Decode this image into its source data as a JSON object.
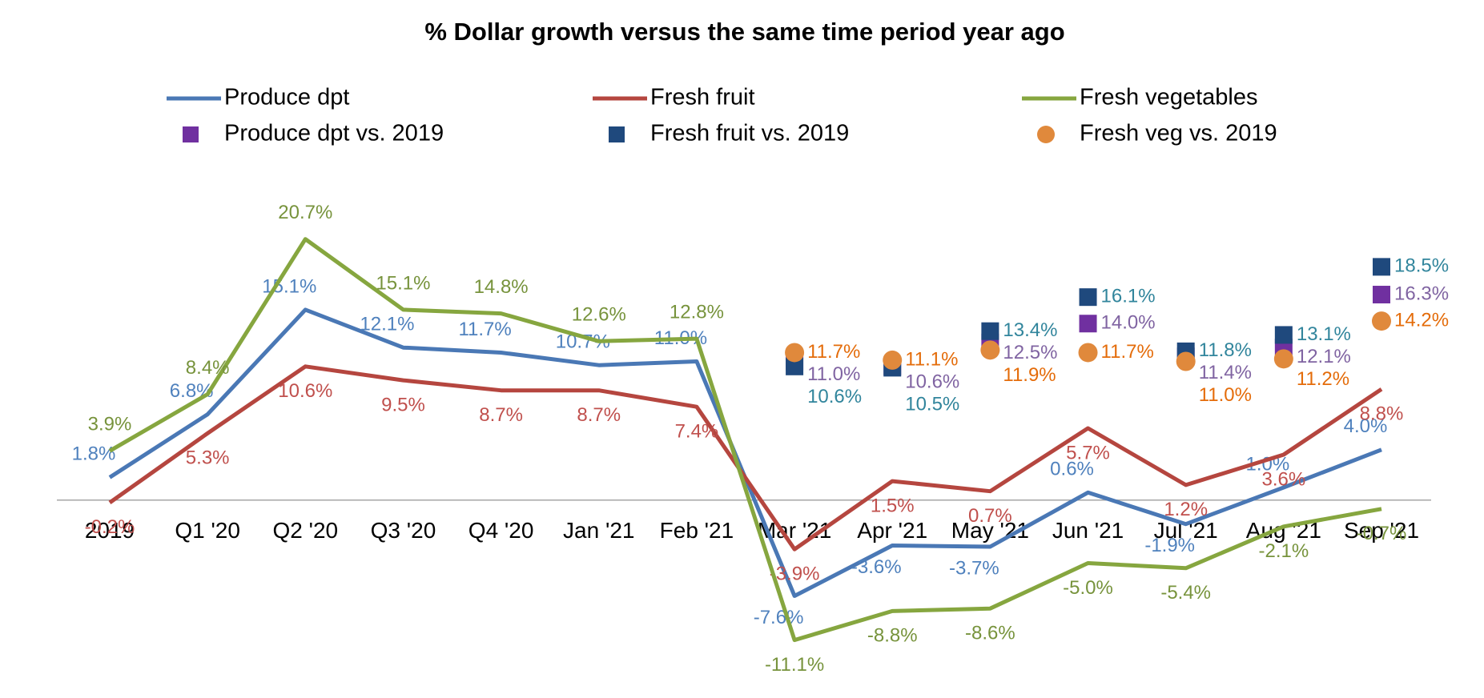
{
  "chart_data": {
    "type": "line",
    "title": "% Dollar growth versus the same time period year ago",
    "categories": [
      "2019",
      "Q1 '20",
      "Q2 '20",
      "Q3 '20",
      "Q4 '20",
      "Jan '21",
      "Feb '21",
      "Mar '21",
      "Apr '21",
      "May '21",
      "Jun '21",
      "Jul '21",
      "Aug '21",
      "Sep '21"
    ],
    "ylim": [
      -15,
      25
    ],
    "series": [
      {
        "name": "Produce dpt",
        "type": "line",
        "color": "#4a78b5",
        "label_color": "#4f81bd",
        "values": [
          1.8,
          6.8,
          15.1,
          12.1,
          11.7,
          10.7,
          11.0,
          -7.6,
          -3.6,
          -3.7,
          0.6,
          -1.9,
          1.0,
          4.0
        ],
        "value_labels": [
          "1.8%",
          "6.8%",
          "15.1%",
          "12.1%",
          "11.7%",
          "10.7%",
          "11.0%",
          "-7.6%",
          "-3.6%",
          "-3.7%",
          "0.6%",
          "-1.9%",
          "1.0%",
          "4.0%"
        ]
      },
      {
        "name": "Fresh fruit",
        "type": "line",
        "color": "#b5463f",
        "label_color": "#c0504d",
        "values": [
          -0.2,
          5.3,
          10.6,
          9.5,
          8.7,
          8.7,
          7.4,
          -3.9,
          1.5,
          0.7,
          5.7,
          1.2,
          3.6,
          8.8
        ],
        "value_labels": [
          "-0.2%",
          "5.3%",
          "10.6%",
          "9.5%",
          "8.7%",
          "8.7%",
          "7.4%",
          "-3.9%",
          "1.5%",
          "0.7%",
          "5.7%",
          "1.2%",
          "3.6%",
          "8.8%"
        ]
      },
      {
        "name": "Fresh vegetables",
        "type": "line",
        "color": "#86a63f",
        "label_color": "#77933c",
        "values": [
          3.9,
          8.4,
          20.7,
          15.1,
          14.8,
          12.6,
          12.8,
          -11.1,
          -8.8,
          -8.6,
          -5.0,
          -5.4,
          -2.1,
          -0.7
        ],
        "value_labels": [
          "3.9%",
          "8.4%",
          "20.7%",
          "15.1%",
          "14.8%",
          "12.6%",
          "12.8%",
          "-11.1%",
          "-8.8%",
          "-8.6%",
          "-5.0%",
          "-5.4%",
          "-2.1%",
          "-0.7%"
        ]
      },
      {
        "name": "Produce dpt vs. 2019",
        "type": "square",
        "color": "#7030a0",
        "label_color": "#8064a2",
        "values": [
          null,
          null,
          null,
          null,
          null,
          null,
          null,
          11.0,
          10.6,
          12.5,
          14.0,
          11.4,
          12.1,
          16.3
        ],
        "value_labels": [
          null,
          null,
          null,
          null,
          null,
          null,
          null,
          "11.0%",
          "10.6%",
          "12.5%",
          "14.0%",
          "11.4%",
          "12.1%",
          "16.3%"
        ]
      },
      {
        "name": "Fresh fruit vs. 2019",
        "type": "square",
        "color": "#1f497d",
        "label_color": "#31859c",
        "values": [
          null,
          null,
          null,
          null,
          null,
          null,
          null,
          10.6,
          10.5,
          13.4,
          16.1,
          11.8,
          13.1,
          18.5
        ],
        "value_labels": [
          null,
          null,
          null,
          null,
          null,
          null,
          null,
          "10.6%",
          "10.5%",
          "13.4%",
          "16.1%",
          "11.8%",
          "13.1%",
          "18.5%"
        ]
      },
      {
        "name": "Fresh veg vs. 2019",
        "type": "circle",
        "color": "#e0893c",
        "label_color": "#e46c0a",
        "values": [
          null,
          null,
          null,
          null,
          null,
          null,
          null,
          11.7,
          11.1,
          11.9,
          11.7,
          11.0,
          11.2,
          14.2
        ],
        "value_labels": [
          null,
          null,
          null,
          null,
          null,
          null,
          null,
          "11.7%",
          "11.1%",
          "11.9%",
          "11.7%",
          "11.0%",
          "11.2%",
          "14.2%"
        ]
      }
    ]
  }
}
